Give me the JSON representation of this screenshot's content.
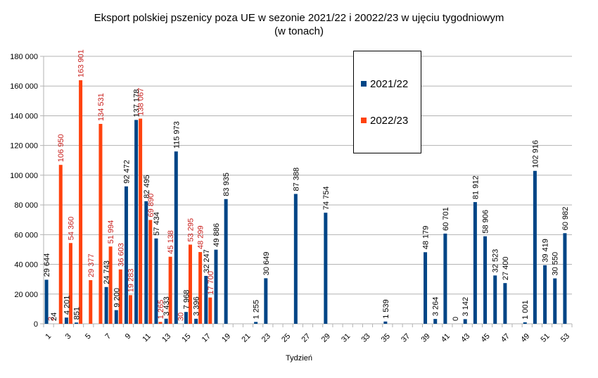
{
  "chart_data": {
    "type": "bar",
    "title": "Eksport polskiej pszenicy poza UE w sezonie 2021/22 i 20022/23 w ujęciu tygodniowym",
    "subtitle": "(w tonach)",
    "xlabel": "Tydzień",
    "ylabel": "",
    "ylim": [
      0,
      180000
    ],
    "yticks": [
      "0",
      "20 000",
      "40 000",
      "60 000",
      "80 000",
      "100 000",
      "120 000",
      "140 000",
      "160 000",
      "180 000"
    ],
    "xticks": [
      "1",
      "3",
      "5",
      "7",
      "9",
      "11",
      "13",
      "15",
      "17",
      "19",
      "21",
      "23",
      "25",
      "27",
      "29",
      "31",
      "33",
      "35",
      "37",
      "39",
      "41",
      "43",
      "45",
      "47",
      "49",
      "51",
      "53"
    ],
    "grid": true,
    "legend_position": "top-right",
    "series": [
      {
        "name": "2021/22",
        "color": "#004586",
        "points": [
          {
            "week": 1,
            "value": 29644,
            "label": "29 644"
          },
          {
            "week": 3,
            "value": 4201,
            "label": "4 201"
          },
          {
            "week": 4,
            "value": 851,
            "label": "851"
          },
          {
            "week": 7,
            "value": 24743,
            "label": "24 743"
          },
          {
            "week": 8,
            "value": 9200,
            "label": "9 200"
          },
          {
            "week": 9,
            "value": 92472,
            "label": "92 472"
          },
          {
            "week": 10,
            "value": 137178,
            "label": "137 178"
          },
          {
            "week": 11,
            "value": 82495,
            "label": "82 495"
          },
          {
            "week": 12,
            "value": 57434,
            "label": "57 434"
          },
          {
            "week": 13,
            "value": 3433,
            "label": "3 433"
          },
          {
            "week": 14,
            "value": 115973,
            "label": "115 973"
          },
          {
            "week": 15,
            "value": 7968,
            "label": "7 968"
          },
          {
            "week": 16,
            "value": 3396,
            "label": "3 396"
          },
          {
            "week": 17,
            "value": 32247,
            "label": "32 247"
          },
          {
            "week": 18,
            "value": 49886,
            "label": "49 886"
          },
          {
            "week": 19,
            "value": 83935,
            "label": "83 935"
          },
          {
            "week": 22,
            "value": 1255,
            "label": "1 255"
          },
          {
            "week": 23,
            "value": 30649,
            "label": "30 649"
          },
          {
            "week": 26,
            "value": 87388,
            "label": "87 388"
          },
          {
            "week": 29,
            "value": 74754,
            "label": "74 754"
          },
          {
            "week": 35,
            "value": 1539,
            "label": "1 539"
          },
          {
            "week": 39,
            "value": 48179,
            "label": "48 179"
          },
          {
            "week": 40,
            "value": 3264,
            "label": "3 264"
          },
          {
            "week": 41,
            "value": 60701,
            "label": "60 701"
          },
          {
            "week": 42,
            "value": 0,
            "label": "0"
          },
          {
            "week": 43,
            "value": 3142,
            "label": "3 142"
          },
          {
            "week": 44,
            "value": 81912,
            "label": "81 912"
          },
          {
            "week": 45,
            "value": 58906,
            "label": "58 906"
          },
          {
            "week": 46,
            "value": 32523,
            "label": "32 523"
          },
          {
            "week": 47,
            "value": 27400,
            "label": "27 400"
          },
          {
            "week": 49,
            "value": 1001,
            "label": "1 001"
          },
          {
            "week": 50,
            "value": 102916,
            "label": "102 916"
          },
          {
            "week": 51,
            "value": 39419,
            "label": "39 419"
          },
          {
            "week": 52,
            "value": 30550,
            "label": "30 550"
          },
          {
            "week": 53,
            "value": 60982,
            "label": "60 982"
          }
        ]
      },
      {
        "name": "2022/23",
        "color": "#ff420e",
        "points": [
          {
            "week": 1,
            "value": 2,
            "label": "2"
          },
          {
            "week": 2,
            "value": 106950,
            "label": "106 950"
          },
          {
            "week": 3,
            "value": 54360,
            "label": "54 360"
          },
          {
            "week": 4,
            "value": 163901,
            "label": "163 901"
          },
          {
            "week": 5,
            "value": 29377,
            "label": "29 377"
          },
          {
            "week": 6,
            "value": 134531,
            "label": "134 531"
          },
          {
            "week": 7,
            "value": 51994,
            "label": "51 994"
          },
          {
            "week": 8,
            "value": 36603,
            "label": "36 603"
          },
          {
            "week": 9,
            "value": 19283,
            "label": "19 283"
          },
          {
            "week": 10,
            "value": 138067,
            "label": "138 067"
          },
          {
            "week": 11,
            "value": 69890,
            "label": "69 890"
          },
          {
            "week": 12,
            "value": 1265,
            "label": "1 265"
          },
          {
            "week": 13,
            "value": 45138,
            "label": "45 138"
          },
          {
            "week": 14,
            "value": 30,
            "label": "30"
          },
          {
            "week": 15,
            "value": 53295,
            "label": "53 295"
          },
          {
            "week": 16,
            "value": 48299,
            "label": "48 299"
          },
          {
            "week": 17,
            "value": 17700,
            "label": "17 700"
          }
        ]
      }
    ],
    "stray_label": "24"
  }
}
